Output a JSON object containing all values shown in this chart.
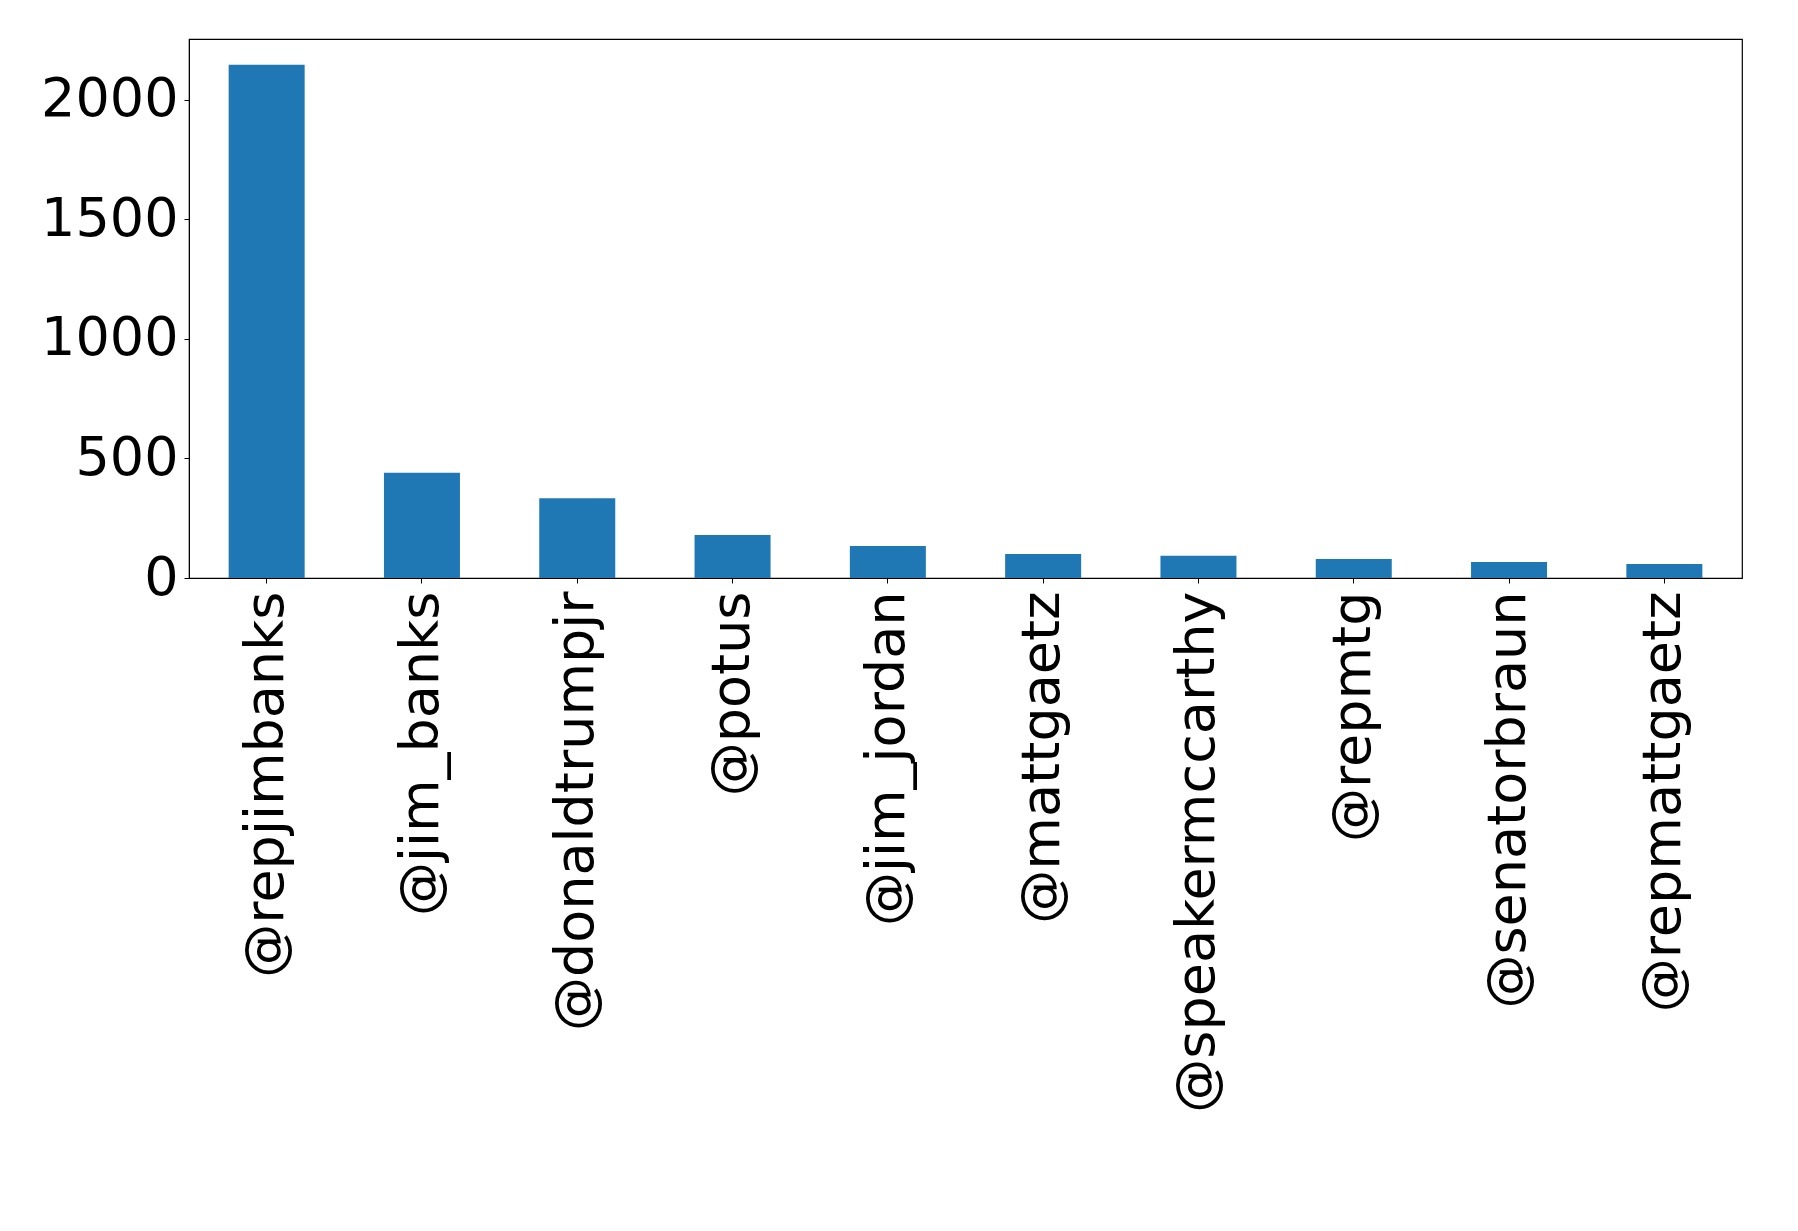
{
  "chart_data": {
    "type": "bar",
    "categories": [
      "@repjimbanks",
      "@jim_banks",
      "@donaldtrumpjr",
      "@potus",
      "@jim_jordan",
      "@mattgaetz",
      "@speakermccarthy",
      "@repmtg",
      "@senatorbraun",
      "@repmattgaetz"
    ],
    "values": [
      2147,
      440,
      334,
      180,
      134,
      100,
      93,
      80,
      67,
      59
    ],
    "color": "#1f77b4",
    "ylim": [
      0,
      2255
    ],
    "yticks": [
      0,
      500,
      1000,
      1500,
      2000
    ],
    "grid": false
  }
}
